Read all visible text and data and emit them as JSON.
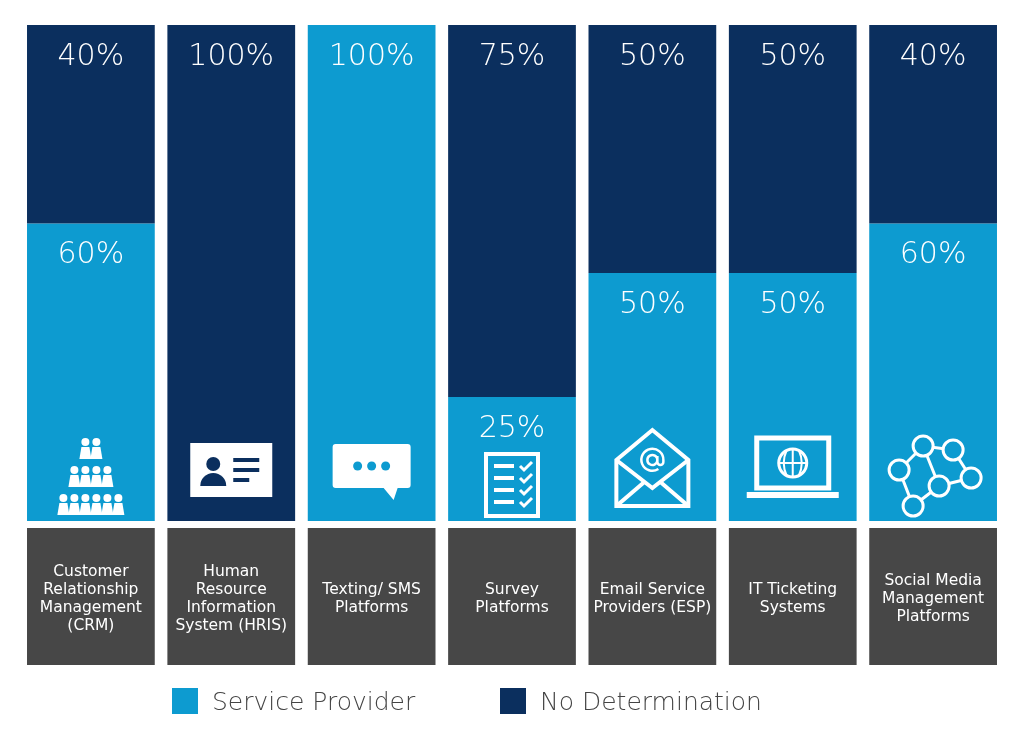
{
  "chart_data": {
    "type": "bar",
    "stacked": true,
    "legend": "bottom",
    "categories": [
      "Customer Relationship Management (CRM)",
      "Human Resource Information System (HRIS)",
      "Texting/ SMS Platforms",
      "Survey Platforms",
      "Email Service Providers (ESP)",
      "IT Ticketing Systems",
      "Social Media Management Platforms"
    ],
    "series": [
      {
        "name": "Service Provider",
        "color": "#0d9bd0",
        "values": [
          60,
          0,
          100,
          25,
          50,
          50,
          60
        ],
        "value_labels": [
          "60%",
          null,
          "100%",
          "25%",
          "50%",
          "50%",
          "60%"
        ]
      },
      {
        "name": "No Determination",
        "color": "#0b2f5e",
        "values": [
          40,
          100,
          0,
          75,
          50,
          50,
          40
        ],
        "value_labels": [
          "40%",
          "100%",
          null,
          "75%",
          "50%",
          "50%",
          "40%"
        ]
      }
    ]
  }
}
